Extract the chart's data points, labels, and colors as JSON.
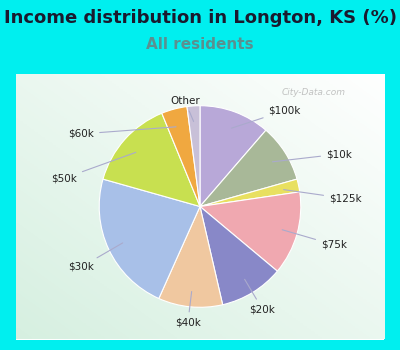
{
  "title": "Income distribution in Longton, KS (%)",
  "subtitle": "All residents",
  "background_outer": "#00EFEF",
  "background_inner_color1": "#d8efe0",
  "background_inner_color2": "#f5fbf5",
  "labels": [
    "$100k",
    "$10k",
    "$125k",
    "$75k",
    "$20k",
    "$40k",
    "$30k",
    "$50k",
    "$60k",
    "Other"
  ],
  "sizes": [
    11,
    9,
    2,
    13,
    10,
    10,
    22,
    14,
    4,
    2
  ],
  "colors": [
    "#b8a8d8",
    "#a8b898",
    "#e8e060",
    "#f0a8b0",
    "#8888c8",
    "#f0c8a0",
    "#a8c0e8",
    "#c8e050",
    "#f0a840",
    "#c8c0d8"
  ],
  "title_fontsize": 13,
  "subtitle_fontsize": 11,
  "title_color": "#1a1a2e",
  "subtitle_color": "#5a9090"
}
